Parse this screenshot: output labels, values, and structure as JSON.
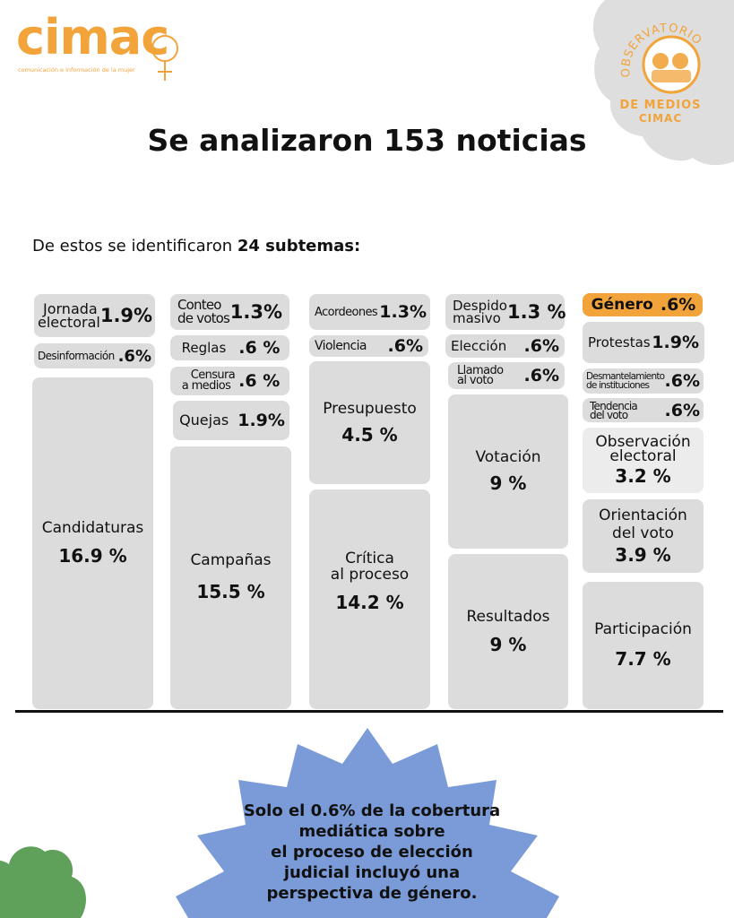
{
  "brand": {
    "logo_text": "cimac",
    "tagline": "comunicación e información de la mujer"
  },
  "observatorio": {
    "arc_text": "OBSERVATORIO",
    "line1": "DE MEDIOS",
    "line2": "CIMAC"
  },
  "title": "Se analizaron 153 noticias",
  "subtitle": {
    "prefix": "De estos se identificaron ",
    "bold": "24 subtemas:"
  },
  "columns": {
    "c1": [
      {
        "label_l1": "Jornada",
        "label_l2": "electoral",
        "pct": "1.9%"
      },
      {
        "label": "Desinformación",
        "pct": ".6%"
      },
      {
        "label": "Candidaturas",
        "pct": "16.9 %"
      }
    ],
    "c2": [
      {
        "label_l1": "Conteo",
        "label_l2": "de votos",
        "pct": "1.3%"
      },
      {
        "label": "Reglas",
        "pct": ".6 %"
      },
      {
        "label_l1": "Censura",
        "label_l2": "a medios",
        "pct": ".6 %"
      },
      {
        "label": "Quejas",
        "pct": "1.9%"
      },
      {
        "label": "Campañas",
        "pct": "15.5 %"
      }
    ],
    "c3": [
      {
        "label": "Acordeones",
        "pct": "1.3%"
      },
      {
        "label": "Violencia",
        "pct": ".6%"
      },
      {
        "label": "Presupuesto",
        "pct": "4.5 %"
      },
      {
        "label_l1": "Crítica",
        "label_l2": "al proceso",
        "pct": "14.2 %"
      }
    ],
    "c4": [
      {
        "label_l1": "Despido",
        "label_l2": "masivo",
        "pct": "1.3 %"
      },
      {
        "label": "Elección",
        "pct": ".6%"
      },
      {
        "label_l1": "Llamado",
        "label_l2": "al voto",
        "pct": ".6%"
      },
      {
        "label": "Votación",
        "pct": "9 %"
      },
      {
        "label": "Resultados",
        "pct": "9 %"
      }
    ],
    "c5": [
      {
        "label": "Género",
        "pct": ".6%"
      },
      {
        "label": "Protestas",
        "pct": "1.9%"
      },
      {
        "label_l1": "Desmantelamiento",
        "label_l2": "de instituciones",
        "pct": ".6%"
      },
      {
        "label_l1": "Tendencia",
        "label_l2": "del voto",
        "pct": ".6%"
      },
      {
        "label_l1": "Observación",
        "label_l2": "electoral",
        "pct": "3.2 %"
      },
      {
        "label_l1": "Orientación",
        "label_l2": "del voto",
        "pct": "3.9 %"
      },
      {
        "label": "Participación",
        "pct": "7.7 %"
      }
    ]
  },
  "callout": {
    "lines": [
      "Solo el 0.6% de la cobertura",
      "mediática sobre",
      "el proceso de elección",
      "judicial incluyó una",
      "perspectiva de género."
    ]
  },
  "colors": {
    "accent_orange": "#f2a33a",
    "tile_gray": "#dcdcdc",
    "starburst_blue": "#7a9bd8",
    "blob_green": "#5fa05a",
    "badge_gray": "#dedede"
  }
}
